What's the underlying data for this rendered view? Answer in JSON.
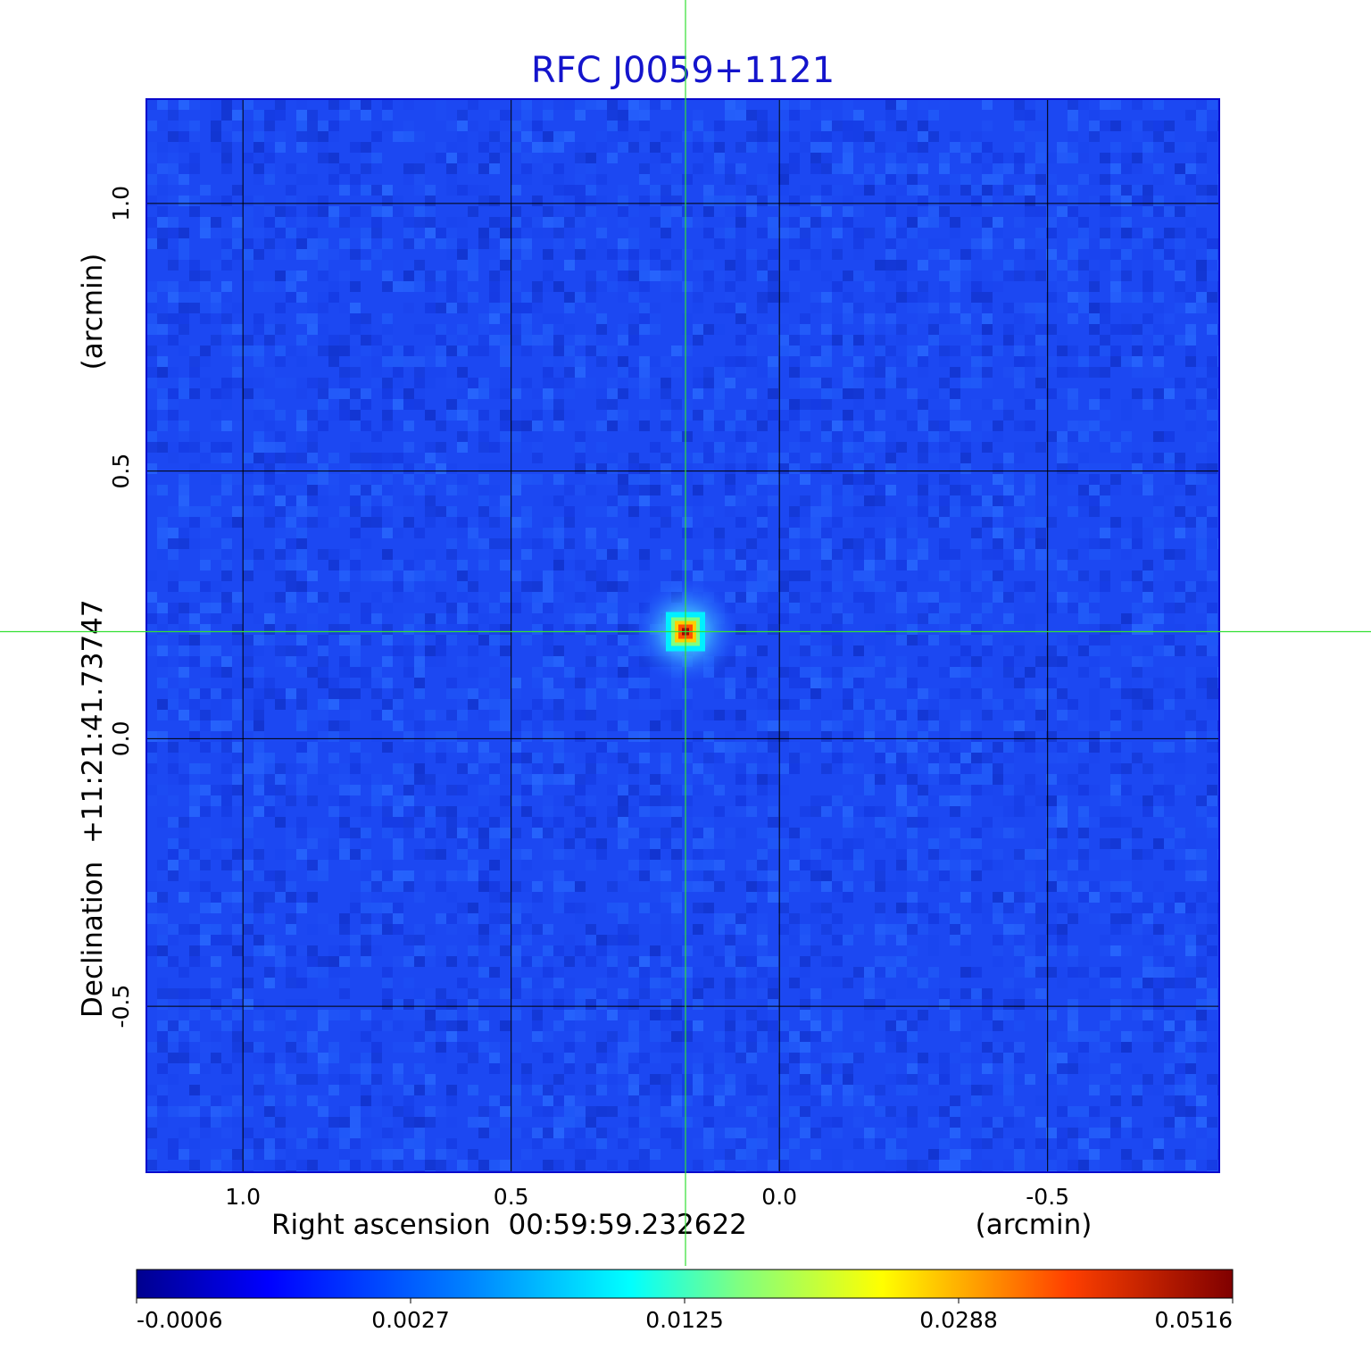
{
  "chart_data": {
    "type": "heatmap",
    "title": "RFC J0059+1121",
    "xlabel": "Right ascension  00:59:59.232622",
    "xunit": "(arcmin)",
    "ylabel": "Declination  +11:21:41.73747",
    "yunit": "(arcmin)",
    "xlim": [
      1.18,
      -0.82
    ],
    "ylim": [
      -0.81,
      1.195
    ],
    "x_ticks": [
      {
        "value": 1.0,
        "label": "1.0"
      },
      {
        "value": 0.5,
        "label": "0.5"
      },
      {
        "value": 0.0,
        "label": "0.0"
      },
      {
        "value": -0.5,
        "label": "-0.5"
      }
    ],
    "y_ticks": [
      {
        "value": 1.0,
        "label": "1.0"
      },
      {
        "value": 0.5,
        "label": "0.5"
      },
      {
        "value": 0.0,
        "label": "0.0"
      },
      {
        "value": -0.5,
        "label": "-0.5"
      }
    ],
    "grid": true,
    "colormap": "jet",
    "colorbar": {
      "orientation": "horizontal",
      "placement": "bottom",
      "ticks": [
        "-0.0006",
        "0.0027",
        "0.0125",
        "0.0288",
        "0.0516"
      ]
    },
    "source_peak": {
      "x": 0.175,
      "y": 0.2,
      "value": 0.0516
    },
    "crosshair": {
      "x": 0.175,
      "y": 0.2
    },
    "colors": {
      "title": "#1414cc",
      "grid": "#000000",
      "crosshair": "#33e033",
      "frame": "#0a0acc"
    }
  }
}
